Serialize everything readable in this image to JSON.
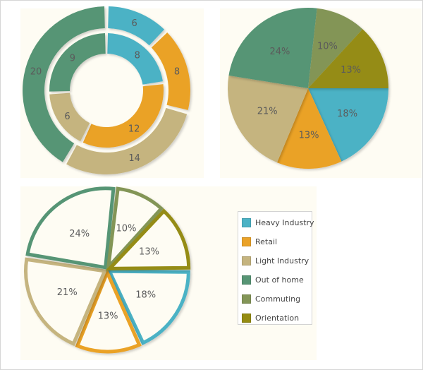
{
  "categories": [
    "Heavy Industry",
    "Retail",
    "Light Industry",
    "Out of home",
    "Commuting",
    "Orientation"
  ],
  "colors": {
    "Heavy Industry": "#4bb2c5",
    "Retail": "#eaa228",
    "Light Industry": "#c5b47f",
    "Out of home": "#579575",
    "Commuting": "#839557",
    "Orientation": "#958c12"
  },
  "chart_data": [
    {
      "type": "donut",
      "title": "",
      "series": [
        {
          "ring": "outer",
          "slices": [
            {
              "category": "Heavy Industry",
              "value": 6,
              "label": "6"
            },
            {
              "category": "Retail",
              "value": 8,
              "label": "8"
            },
            {
              "category": "Light Industry",
              "value": 14,
              "label": "14"
            },
            {
              "category": "Out of home",
              "value": 20,
              "label": "20"
            }
          ]
        },
        {
          "ring": "inner",
          "slices": [
            {
              "category": "Heavy Industry",
              "value": 8,
              "label": "8"
            },
            {
              "category": "Retail",
              "value": 12,
              "label": "12"
            },
            {
              "category": "Light Industry",
              "value": 6,
              "label": "6"
            },
            {
              "category": "Out of home",
              "value": 9,
              "label": "9"
            }
          ]
        }
      ]
    },
    {
      "type": "pie",
      "title": "",
      "style": "filled",
      "slices": [
        {
          "category": "Heavy Industry",
          "value": 18,
          "label": "18%"
        },
        {
          "category": "Retail",
          "value": 13,
          "label": "13%"
        },
        {
          "category": "Light Industry",
          "value": 21,
          "label": "21%"
        },
        {
          "category": "Out of home",
          "value": 24,
          "label": "24%"
        },
        {
          "category": "Commuting",
          "value": 10,
          "label": "10%"
        },
        {
          "category": "Orientation",
          "value": 13,
          "label": "13%"
        }
      ]
    },
    {
      "type": "pie",
      "title": "",
      "style": "outline-exploded",
      "legend_position": "right",
      "slices": [
        {
          "category": "Heavy Industry",
          "value": 18,
          "label": "18%"
        },
        {
          "category": "Retail",
          "value": 13,
          "label": "13%"
        },
        {
          "category": "Light Industry",
          "value": 21,
          "label": "21%"
        },
        {
          "category": "Out of home",
          "value": 24,
          "label": "24%"
        },
        {
          "category": "Commuting",
          "value": 10,
          "label": "10%"
        },
        {
          "category": "Orientation",
          "value": 13,
          "label": "13%"
        }
      ]
    }
  ],
  "legend": {
    "items": [
      {
        "label": "Heavy Industry",
        "category": "Heavy Industry"
      },
      {
        "label": "Retail",
        "category": "Retail"
      },
      {
        "label": "Light Industry",
        "category": "Light Industry"
      },
      {
        "label": "Out of home",
        "category": "Out of home"
      },
      {
        "label": "Commuting",
        "category": "Commuting"
      },
      {
        "label": "Orientation",
        "category": "Orientation"
      }
    ]
  }
}
